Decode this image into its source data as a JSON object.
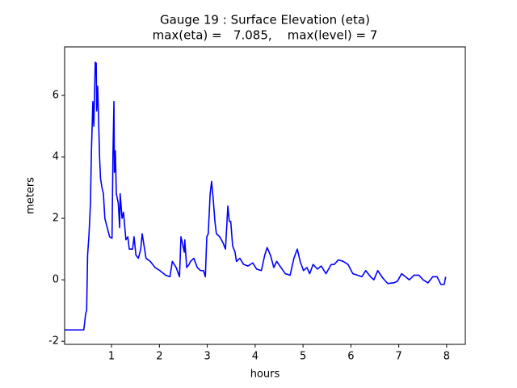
{
  "chart_data": {
    "type": "line",
    "title": "Gauge 19 : Surface Elevation (eta)",
    "subtitle": "max(eta) =   7.085,    max(level) = 7",
    "xlabel": "hours",
    "ylabel": "meters",
    "xlim": [
      0.02,
      8.39
    ],
    "ylim": [
      -2.1,
      7.58
    ],
    "xticks": [
      1,
      2,
      3,
      4,
      5,
      6,
      7,
      8
    ],
    "yticks": [
      -2,
      0,
      2,
      4,
      6
    ],
    "series": [
      {
        "name": "eta",
        "color": "#0000ff",
        "x": [
          0.02,
          0.42,
          0.46,
          0.48,
          0.5,
          0.53,
          0.56,
          0.58,
          0.61,
          0.63,
          0.66,
          0.68,
          0.69,
          0.71,
          0.73,
          0.75,
          0.77,
          0.8,
          0.83,
          0.86,
          0.91,
          0.96,
          1.01,
          1.03,
          1.05,
          1.06,
          1.08,
          1.1,
          1.14,
          1.17,
          1.18,
          1.22,
          1.25,
          1.3,
          1.34,
          1.37,
          1.44,
          1.47,
          1.51,
          1.56,
          1.61,
          1.64,
          1.67,
          1.72,
          1.81,
          1.91,
          2.01,
          2.13,
          2.22,
          2.27,
          2.35,
          2.42,
          2.45,
          2.48,
          2.52,
          2.53,
          2.57,
          2.62,
          2.65,
          2.72,
          2.79,
          2.86,
          2.92,
          2.96,
          2.99,
          3.02,
          3.06,
          3.09,
          3.12,
          3.16,
          3.19,
          3.26,
          3.33,
          3.38,
          3.43,
          3.46,
          3.49,
          3.53,
          3.58,
          3.61,
          3.68,
          3.76,
          3.85,
          3.95,
          4.03,
          4.13,
          4.2,
          4.25,
          4.32,
          4.39,
          4.45,
          4.54,
          4.63,
          4.73,
          4.81,
          4.88,
          4.94,
          5.01,
          5.08,
          5.14,
          5.21,
          5.3,
          5.38,
          5.48,
          5.59,
          5.65,
          5.74,
          5.84,
          5.94,
          6.04,
          6.14,
          6.23,
          6.31,
          6.41,
          6.48,
          6.56,
          6.67,
          6.77,
          6.89,
          6.97,
          7.06,
          7.14,
          7.22,
          7.32,
          7.42,
          7.51,
          7.61,
          7.71,
          7.8,
          7.88,
          7.95,
          7.98
        ],
        "values": [
          -1.63,
          -1.63,
          -1.1,
          -1.0,
          0.8,
          1.5,
          2.5,
          4.2,
          5.8,
          5.0,
          7.08,
          7.05,
          5.5,
          6.3,
          5.2,
          4.0,
          3.3,
          3.0,
          2.8,
          2.0,
          1.7,
          1.4,
          1.35,
          4.1,
          5.8,
          3.5,
          4.2,
          2.8,
          2.5,
          1.7,
          2.8,
          2.0,
          2.2,
          1.3,
          1.4,
          1.0,
          1.0,
          1.4,
          0.8,
          0.7,
          1.0,
          1.5,
          1.2,
          0.7,
          0.6,
          0.4,
          0.3,
          0.15,
          0.1,
          0.6,
          0.4,
          0.1,
          1.4,
          1.2,
          0.9,
          1.3,
          0.4,
          0.5,
          0.6,
          0.7,
          0.4,
          0.3,
          0.3,
          0.1,
          1.4,
          1.5,
          2.8,
          3.2,
          2.7,
          1.9,
          1.5,
          1.4,
          1.2,
          1.0,
          2.4,
          1.9,
          1.9,
          1.1,
          0.9,
          0.6,
          0.7,
          0.5,
          0.45,
          0.55,
          0.35,
          0.3,
          0.8,
          1.05,
          0.8,
          0.4,
          0.6,
          0.4,
          0.2,
          0.15,
          0.7,
          1.0,
          0.6,
          0.3,
          0.4,
          0.2,
          0.5,
          0.35,
          0.45,
          0.2,
          0.5,
          0.5,
          0.65,
          0.6,
          0.5,
          0.2,
          0.15,
          0.1,
          0.3,
          0.1,
          0.0,
          0.3,
          0.05,
          -0.12,
          -0.1,
          -0.05,
          0.2,
          0.1,
          0.0,
          0.15,
          0.15,
          0.0,
          -0.1,
          0.1,
          0.1,
          -0.15,
          -0.15,
          0.1
        ]
      }
    ]
  }
}
